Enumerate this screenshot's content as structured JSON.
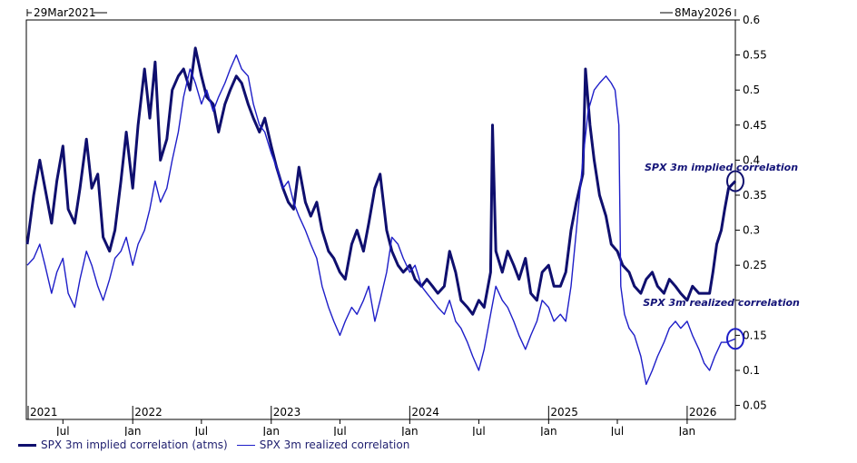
{
  "chart_data": {
    "type": "line",
    "start_label": "29Mar2021",
    "end_label": "8May2026",
    "x_range": [
      "2021-03-29",
      "2026-05-08"
    ],
    "ylim": [
      0.03,
      0.6
    ],
    "yticks": [
      0.05,
      0.1,
      0.15,
      0.2,
      0.25,
      0.3,
      0.35,
      0.4,
      0.45,
      0.5,
      0.55,
      0.6
    ],
    "y_tick_labels": [
      "0.05",
      "0.1",
      "0.15",
      "",
      "0.25",
      "0.3",
      "0.35",
      "0.4",
      "0.45",
      "0.5",
      "0.55",
      "0.6"
    ],
    "x_tick_labels": [
      {
        "date": "2021-07-01",
        "label": "Jul"
      },
      {
        "date": "2022-01-01",
        "label": "Jan"
      },
      {
        "date": "2022-07-01",
        "label": "Jul"
      },
      {
        "date": "2023-01-01",
        "label": "Jan"
      },
      {
        "date": "2023-07-01",
        "label": "Jul"
      },
      {
        "date": "2024-01-01",
        "label": "Jan"
      },
      {
        "date": "2024-07-01",
        "label": "Jul"
      },
      {
        "date": "2025-01-01",
        "label": "Jan"
      },
      {
        "date": "2025-07-01",
        "label": "Jul"
      },
      {
        "date": "2026-01-01",
        "label": "Jan"
      }
    ],
    "year_labels": [
      {
        "date": "2021-03-29",
        "label": "2021"
      },
      {
        "date": "2022-01-01",
        "label": "2022"
      },
      {
        "date": "2023-01-01",
        "label": "2023"
      },
      {
        "date": "2024-01-01",
        "label": "2024"
      },
      {
        "date": "2025-01-01",
        "label": "2025"
      },
      {
        "date": "2026-01-01",
        "label": "2026"
      }
    ],
    "annotations": [
      {
        "text": "SPX 3m implied correlation",
        "date": "2026-04-01",
        "y": 0.385
      },
      {
        "text": "SPX 3m realized correlation",
        "date": "2026-04-01",
        "y": 0.192
      }
    ],
    "series": [
      {
        "name": "SPX 3m implied correlation (atms)",
        "color": "#0f0f6e",
        "points": [
          [
            "2021-03-29",
            0.28
          ],
          [
            "2021-04-15",
            0.35
          ],
          [
            "2021-05-01",
            0.4
          ],
          [
            "2021-05-15",
            0.36
          ],
          [
            "2021-06-01",
            0.31
          ],
          [
            "2021-06-15",
            0.37
          ],
          [
            "2021-07-01",
            0.42
          ],
          [
            "2021-07-15",
            0.33
          ],
          [
            "2021-08-01",
            0.31
          ],
          [
            "2021-08-15",
            0.36
          ],
          [
            "2021-09-01",
            0.43
          ],
          [
            "2021-09-15",
            0.36
          ],
          [
            "2021-10-01",
            0.38
          ],
          [
            "2021-10-15",
            0.29
          ],
          [
            "2021-11-01",
            0.27
          ],
          [
            "2021-11-15",
            0.3
          ],
          [
            "2021-12-01",
            0.37
          ],
          [
            "2021-12-15",
            0.44
          ],
          [
            "2022-01-01",
            0.36
          ],
          [
            "2022-01-15",
            0.45
          ],
          [
            "2022-02-01",
            0.53
          ],
          [
            "2022-02-15",
            0.46
          ],
          [
            "2022-03-01",
            0.54
          ],
          [
            "2022-03-15",
            0.4
          ],
          [
            "2022-04-01",
            0.43
          ],
          [
            "2022-04-15",
            0.5
          ],
          [
            "2022-05-01",
            0.52
          ],
          [
            "2022-05-15",
            0.53
          ],
          [
            "2022-06-01",
            0.5
          ],
          [
            "2022-06-15",
            0.56
          ],
          [
            "2022-07-01",
            0.52
          ],
          [
            "2022-07-15",
            0.49
          ],
          [
            "2022-08-01",
            0.48
          ],
          [
            "2022-08-15",
            0.44
          ],
          [
            "2022-09-01",
            0.48
          ],
          [
            "2022-09-15",
            0.5
          ],
          [
            "2022-10-01",
            0.52
          ],
          [
            "2022-10-15",
            0.51
          ],
          [
            "2022-11-01",
            0.48
          ],
          [
            "2022-11-15",
            0.46
          ],
          [
            "2022-12-01",
            0.44
          ],
          [
            "2022-12-15",
            0.46
          ],
          [
            "2023-01-01",
            0.42
          ],
          [
            "2023-01-15",
            0.39
          ],
          [
            "2023-02-01",
            0.36
          ],
          [
            "2023-02-15",
            0.34
          ],
          [
            "2023-03-01",
            0.33
          ],
          [
            "2023-03-15",
            0.39
          ],
          [
            "2023-04-01",
            0.34
          ],
          [
            "2023-04-15",
            0.32
          ],
          [
            "2023-05-01",
            0.34
          ],
          [
            "2023-05-15",
            0.3
          ],
          [
            "2023-06-01",
            0.27
          ],
          [
            "2023-06-15",
            0.26
          ],
          [
            "2023-07-01",
            0.24
          ],
          [
            "2023-07-15",
            0.23
          ],
          [
            "2023-08-01",
            0.28
          ],
          [
            "2023-08-15",
            0.3
          ],
          [
            "2023-09-01",
            0.27
          ],
          [
            "2023-09-15",
            0.31
          ],
          [
            "2023-10-01",
            0.36
          ],
          [
            "2023-10-15",
            0.38
          ],
          [
            "2023-11-01",
            0.3
          ],
          [
            "2023-11-15",
            0.27
          ],
          [
            "2023-12-01",
            0.25
          ],
          [
            "2023-12-15",
            0.24
          ],
          [
            "2024-01-01",
            0.25
          ],
          [
            "2024-01-15",
            0.23
          ],
          [
            "2024-02-01",
            0.22
          ],
          [
            "2024-02-15",
            0.23
          ],
          [
            "2024-03-01",
            0.22
          ],
          [
            "2024-03-15",
            0.21
          ],
          [
            "2024-04-01",
            0.22
          ],
          [
            "2024-04-15",
            0.27
          ],
          [
            "2024-05-01",
            0.24
          ],
          [
            "2024-05-15",
            0.2
          ],
          [
            "2024-06-01",
            0.19
          ],
          [
            "2024-06-15",
            0.18
          ],
          [
            "2024-07-01",
            0.2
          ],
          [
            "2024-07-15",
            0.19
          ],
          [
            "2024-08-01",
            0.24
          ],
          [
            "2024-08-06",
            0.45
          ],
          [
            "2024-08-15",
            0.27
          ],
          [
            "2024-09-01",
            0.24
          ],
          [
            "2024-09-15",
            0.27
          ],
          [
            "2024-10-01",
            0.25
          ],
          [
            "2024-10-15",
            0.23
          ],
          [
            "2024-11-01",
            0.26
          ],
          [
            "2024-11-15",
            0.21
          ],
          [
            "2024-12-01",
            0.2
          ],
          [
            "2024-12-15",
            0.24
          ],
          [
            "2025-01-01",
            0.25
          ],
          [
            "2025-01-15",
            0.22
          ],
          [
            "2025-02-01",
            0.22
          ],
          [
            "2025-02-15",
            0.24
          ],
          [
            "2025-03-01",
            0.3
          ],
          [
            "2025-03-15",
            0.34
          ],
          [
            "2025-04-01",
            0.38
          ],
          [
            "2025-04-08",
            0.53
          ],
          [
            "2025-04-20",
            0.45
          ],
          [
            "2025-05-01",
            0.4
          ],
          [
            "2025-05-15",
            0.35
          ],
          [
            "2025-06-01",
            0.32
          ],
          [
            "2025-06-15",
            0.28
          ],
          [
            "2025-07-01",
            0.27
          ],
          [
            "2025-07-15",
            0.25
          ],
          [
            "2025-08-01",
            0.24
          ],
          [
            "2025-08-15",
            0.22
          ],
          [
            "2025-09-01",
            0.21
          ],
          [
            "2025-09-15",
            0.23
          ],
          [
            "2025-10-01",
            0.24
          ],
          [
            "2025-10-15",
            0.22
          ],
          [
            "2025-11-01",
            0.21
          ],
          [
            "2025-11-15",
            0.23
          ],
          [
            "2025-12-01",
            0.22
          ],
          [
            "2025-12-15",
            0.21
          ],
          [
            "2026-01-01",
            0.2
          ],
          [
            "2026-01-15",
            0.22
          ],
          [
            "2026-02-01",
            0.21
          ],
          [
            "2026-02-15",
            0.21
          ],
          [
            "2026-03-01",
            0.21
          ],
          [
            "2026-03-10",
            0.24
          ],
          [
            "2026-03-20",
            0.28
          ],
          [
            "2026-04-01",
            0.3
          ],
          [
            "2026-04-10",
            0.33
          ],
          [
            "2026-04-20",
            0.36
          ],
          [
            "2026-05-08",
            0.37
          ]
        ]
      },
      {
        "name": "SPX 3m realized correlation",
        "color": "#1e1ec8",
        "points": [
          [
            "2021-03-29",
            0.25
          ],
          [
            "2021-04-15",
            0.26
          ],
          [
            "2021-05-01",
            0.28
          ],
          [
            "2021-05-15",
            0.25
          ],
          [
            "2021-06-01",
            0.21
          ],
          [
            "2021-06-15",
            0.24
          ],
          [
            "2021-07-01",
            0.26
          ],
          [
            "2021-07-15",
            0.21
          ],
          [
            "2021-08-01",
            0.19
          ],
          [
            "2021-08-15",
            0.23
          ],
          [
            "2021-09-01",
            0.27
          ],
          [
            "2021-09-15",
            0.25
          ],
          [
            "2021-10-01",
            0.22
          ],
          [
            "2021-10-15",
            0.2
          ],
          [
            "2021-11-01",
            0.23
          ],
          [
            "2021-11-15",
            0.26
          ],
          [
            "2021-12-01",
            0.27
          ],
          [
            "2021-12-15",
            0.29
          ],
          [
            "2022-01-01",
            0.25
          ],
          [
            "2022-01-15",
            0.28
          ],
          [
            "2022-02-01",
            0.3
          ],
          [
            "2022-02-15",
            0.33
          ],
          [
            "2022-03-01",
            0.37
          ],
          [
            "2022-03-15",
            0.34
          ],
          [
            "2022-04-01",
            0.36
          ],
          [
            "2022-04-15",
            0.4
          ],
          [
            "2022-05-01",
            0.44
          ],
          [
            "2022-05-15",
            0.49
          ],
          [
            "2022-06-01",
            0.53
          ],
          [
            "2022-06-15",
            0.51
          ],
          [
            "2022-07-01",
            0.48
          ],
          [
            "2022-07-15",
            0.5
          ],
          [
            "2022-08-01",
            0.47
          ],
          [
            "2022-08-15",
            0.49
          ],
          [
            "2022-09-01",
            0.51
          ],
          [
            "2022-09-15",
            0.53
          ],
          [
            "2022-10-01",
            0.55
          ],
          [
            "2022-10-15",
            0.53
          ],
          [
            "2022-11-01",
            0.52
          ],
          [
            "2022-11-15",
            0.48
          ],
          [
            "2022-12-01",
            0.45
          ],
          [
            "2022-12-15",
            0.44
          ],
          [
            "2023-01-01",
            0.41
          ],
          [
            "2023-01-15",
            0.39
          ],
          [
            "2023-02-01",
            0.36
          ],
          [
            "2023-02-15",
            0.37
          ],
          [
            "2023-03-01",
            0.34
          ],
          [
            "2023-03-15",
            0.32
          ],
          [
            "2023-04-01",
            0.3
          ],
          [
            "2023-04-15",
            0.28
          ],
          [
            "2023-05-01",
            0.26
          ],
          [
            "2023-05-15",
            0.22
          ],
          [
            "2023-06-01",
            0.19
          ],
          [
            "2023-06-15",
            0.17
          ],
          [
            "2023-07-01",
            0.15
          ],
          [
            "2023-07-15",
            0.17
          ],
          [
            "2023-08-01",
            0.19
          ],
          [
            "2023-08-15",
            0.18
          ],
          [
            "2023-09-01",
            0.2
          ],
          [
            "2023-09-15",
            0.22
          ],
          [
            "2023-10-01",
            0.17
          ],
          [
            "2023-10-15",
            0.2
          ],
          [
            "2023-11-01",
            0.24
          ],
          [
            "2023-11-15",
            0.29
          ],
          [
            "2023-12-01",
            0.28
          ],
          [
            "2023-12-15",
            0.26
          ],
          [
            "2024-01-01",
            0.24
          ],
          [
            "2024-01-15",
            0.25
          ],
          [
            "2024-02-01",
            0.22
          ],
          [
            "2024-02-15",
            0.21
          ],
          [
            "2024-03-01",
            0.2
          ],
          [
            "2024-03-15",
            0.19
          ],
          [
            "2024-04-01",
            0.18
          ],
          [
            "2024-04-15",
            0.2
          ],
          [
            "2024-05-01",
            0.17
          ],
          [
            "2024-05-15",
            0.16
          ],
          [
            "2024-06-01",
            0.14
          ],
          [
            "2024-06-15",
            0.12
          ],
          [
            "2024-07-01",
            0.1
          ],
          [
            "2024-07-15",
            0.13
          ],
          [
            "2024-08-01",
            0.18
          ],
          [
            "2024-08-15",
            0.22
          ],
          [
            "2024-09-01",
            0.2
          ],
          [
            "2024-09-15",
            0.19
          ],
          [
            "2024-10-01",
            0.17
          ],
          [
            "2024-10-15",
            0.15
          ],
          [
            "2024-11-01",
            0.13
          ],
          [
            "2024-11-15",
            0.15
          ],
          [
            "2024-12-01",
            0.17
          ],
          [
            "2024-12-15",
            0.2
          ],
          [
            "2025-01-01",
            0.19
          ],
          [
            "2025-01-15",
            0.17
          ],
          [
            "2025-02-01",
            0.18
          ],
          [
            "2025-02-15",
            0.17
          ],
          [
            "2025-03-01",
            0.22
          ],
          [
            "2025-03-15",
            0.3
          ],
          [
            "2025-04-01",
            0.4
          ],
          [
            "2025-04-15",
            0.47
          ],
          [
            "2025-05-01",
            0.5
          ],
          [
            "2025-05-15",
            0.51
          ],
          [
            "2025-06-01",
            0.52
          ],
          [
            "2025-06-15",
            0.51
          ],
          [
            "2025-06-25",
            0.5
          ],
          [
            "2025-07-05",
            0.45
          ],
          [
            "2025-07-10",
            0.22
          ],
          [
            "2025-07-20",
            0.18
          ],
          [
            "2025-08-01",
            0.16
          ],
          [
            "2025-08-15",
            0.15
          ],
          [
            "2025-09-01",
            0.12
          ],
          [
            "2025-09-15",
            0.08
          ],
          [
            "2025-10-01",
            0.1
          ],
          [
            "2025-10-15",
            0.12
          ],
          [
            "2025-11-01",
            0.14
          ],
          [
            "2025-11-15",
            0.16
          ],
          [
            "2025-12-01",
            0.17
          ],
          [
            "2025-12-15",
            0.16
          ],
          [
            "2026-01-01",
            0.17
          ],
          [
            "2026-01-15",
            0.15
          ],
          [
            "2026-02-01",
            0.13
          ],
          [
            "2026-02-15",
            0.11
          ],
          [
            "2026-03-01",
            0.1
          ],
          [
            "2026-03-15",
            0.12
          ],
          [
            "2026-04-01",
            0.14
          ],
          [
            "2026-04-15",
            0.14
          ],
          [
            "2026-05-08",
            0.145
          ]
        ]
      }
    ]
  }
}
